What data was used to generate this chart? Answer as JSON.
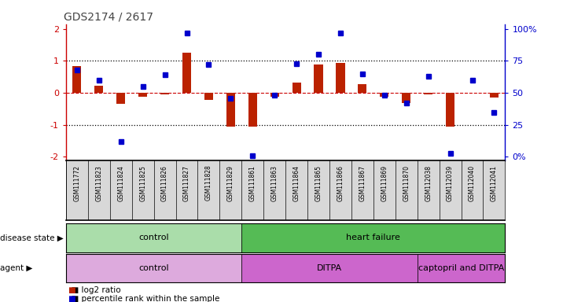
{
  "title": "GDS2174 / 2617",
  "samples": [
    "GSM111772",
    "GSM111823",
    "GSM111824",
    "GSM111825",
    "GSM111826",
    "GSM111827",
    "GSM111828",
    "GSM111829",
    "GSM111861",
    "GSM111863",
    "GSM111864",
    "GSM111865",
    "GSM111866",
    "GSM111867",
    "GSM111869",
    "GSM111870",
    "GSM112038",
    "GSM112039",
    "GSM112040",
    "GSM112041"
  ],
  "log2_ratio": [
    0.85,
    0.22,
    -0.35,
    -0.12,
    -0.05,
    1.25,
    -0.22,
    -1.05,
    -1.05,
    -0.12,
    0.32,
    0.9,
    0.95,
    0.28,
    -0.12,
    -0.32,
    -0.05,
    -1.05,
    0.0,
    -0.15
  ],
  "percentile": [
    68,
    60,
    12,
    55,
    64,
    97,
    72,
    46,
    1,
    48,
    73,
    80,
    97,
    65,
    48,
    42,
    63,
    3,
    60,
    35
  ],
  "disease_state_groups": [
    {
      "label": "control",
      "start": 0,
      "end": 8,
      "color": "#aaddaa"
    },
    {
      "label": "heart failure",
      "start": 8,
      "end": 20,
      "color": "#55bb55"
    }
  ],
  "agent_groups": [
    {
      "label": "control",
      "start": 0,
      "end": 8,
      "color": "#ddaadd"
    },
    {
      "label": "DITPA",
      "start": 8,
      "end": 16,
      "color": "#cc66cc"
    },
    {
      "label": "captopril and DITPA",
      "start": 16,
      "end": 20,
      "color": "#cc66cc"
    }
  ],
  "bar_color": "#bb2200",
  "dot_color": "#0000cc",
  "right_ylabel_ticks": [
    0,
    25,
    50,
    75,
    100
  ],
  "right_ylabel_labels": [
    "0%",
    "25",
    "50",
    "75",
    "100%"
  ],
  "ylim": [
    -2.1,
    2.15
  ],
  "yticks": [
    -2,
    -1,
    0,
    1,
    2
  ],
  "hline_color": "#cc0000",
  "dotted_line_color": "#000000",
  "background_color": "#ffffff",
  "title_color": "#444444",
  "title_fontsize": 10,
  "label_bg_color": "#d8d8d8",
  "label_border_color": "#888888"
}
